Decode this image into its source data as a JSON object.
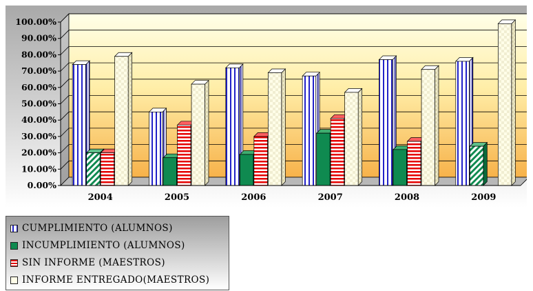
{
  "chart_data": {
    "type": "bar",
    "categories": [
      "2004",
      "2005",
      "2006",
      "2007",
      "2008",
      "2009"
    ],
    "y_tick_labels": [
      "0.00%",
      "10.00%",
      "20.00%",
      "30.00%",
      "40.00%",
      "50.00%",
      "60.00%",
      "70.00%",
      "80.00%",
      "90.00%",
      "100.00%"
    ],
    "ylim": [
      0,
      100
    ],
    "y_format": "percent",
    "grid": true,
    "legend_position": "bottom-left",
    "series": [
      {
        "name": "CUMPLIMIENTO (ALUMNOS)",
        "values": [
          74,
          45,
          72,
          67,
          77,
          76
        ],
        "color": "#2020c8",
        "pattern": [
          "vertical-stripes",
          "vertical-stripes",
          "vertical-stripes",
          "vertical-stripes",
          "vertical-stripes",
          "vertical-stripes"
        ]
      },
      {
        "name": "INCUMPLIMIENTO (ALUMNOS)",
        "values": [
          20,
          17,
          19,
          32,
          22,
          24
        ],
        "color": "#0f8a50",
        "pattern": [
          "diagonal-stripes",
          "solid",
          "solid",
          "solid",
          "solid",
          "diagonal-stripes"
        ]
      },
      {
        "name": "SIN INFORME (MAESTROS)",
        "values": [
          20,
          37,
          30,
          41,
          27,
          0
        ],
        "color": "#e60000",
        "pattern": [
          "horizontal-stripes",
          "horizontal-stripes",
          "horizontal-stripes",
          "horizontal-stripes",
          "horizontal-stripes",
          "horizontal-stripes"
        ]
      },
      {
        "name": "INFORME ENTREGADO(MAESTROS)",
        "values": [
          79,
          62,
          69,
          57,
          71,
          99
        ],
        "color": "#fffde8",
        "pattern": [
          "checker",
          "checker",
          "checker",
          "checker",
          "checker",
          "checker"
        ]
      }
    ]
  }
}
